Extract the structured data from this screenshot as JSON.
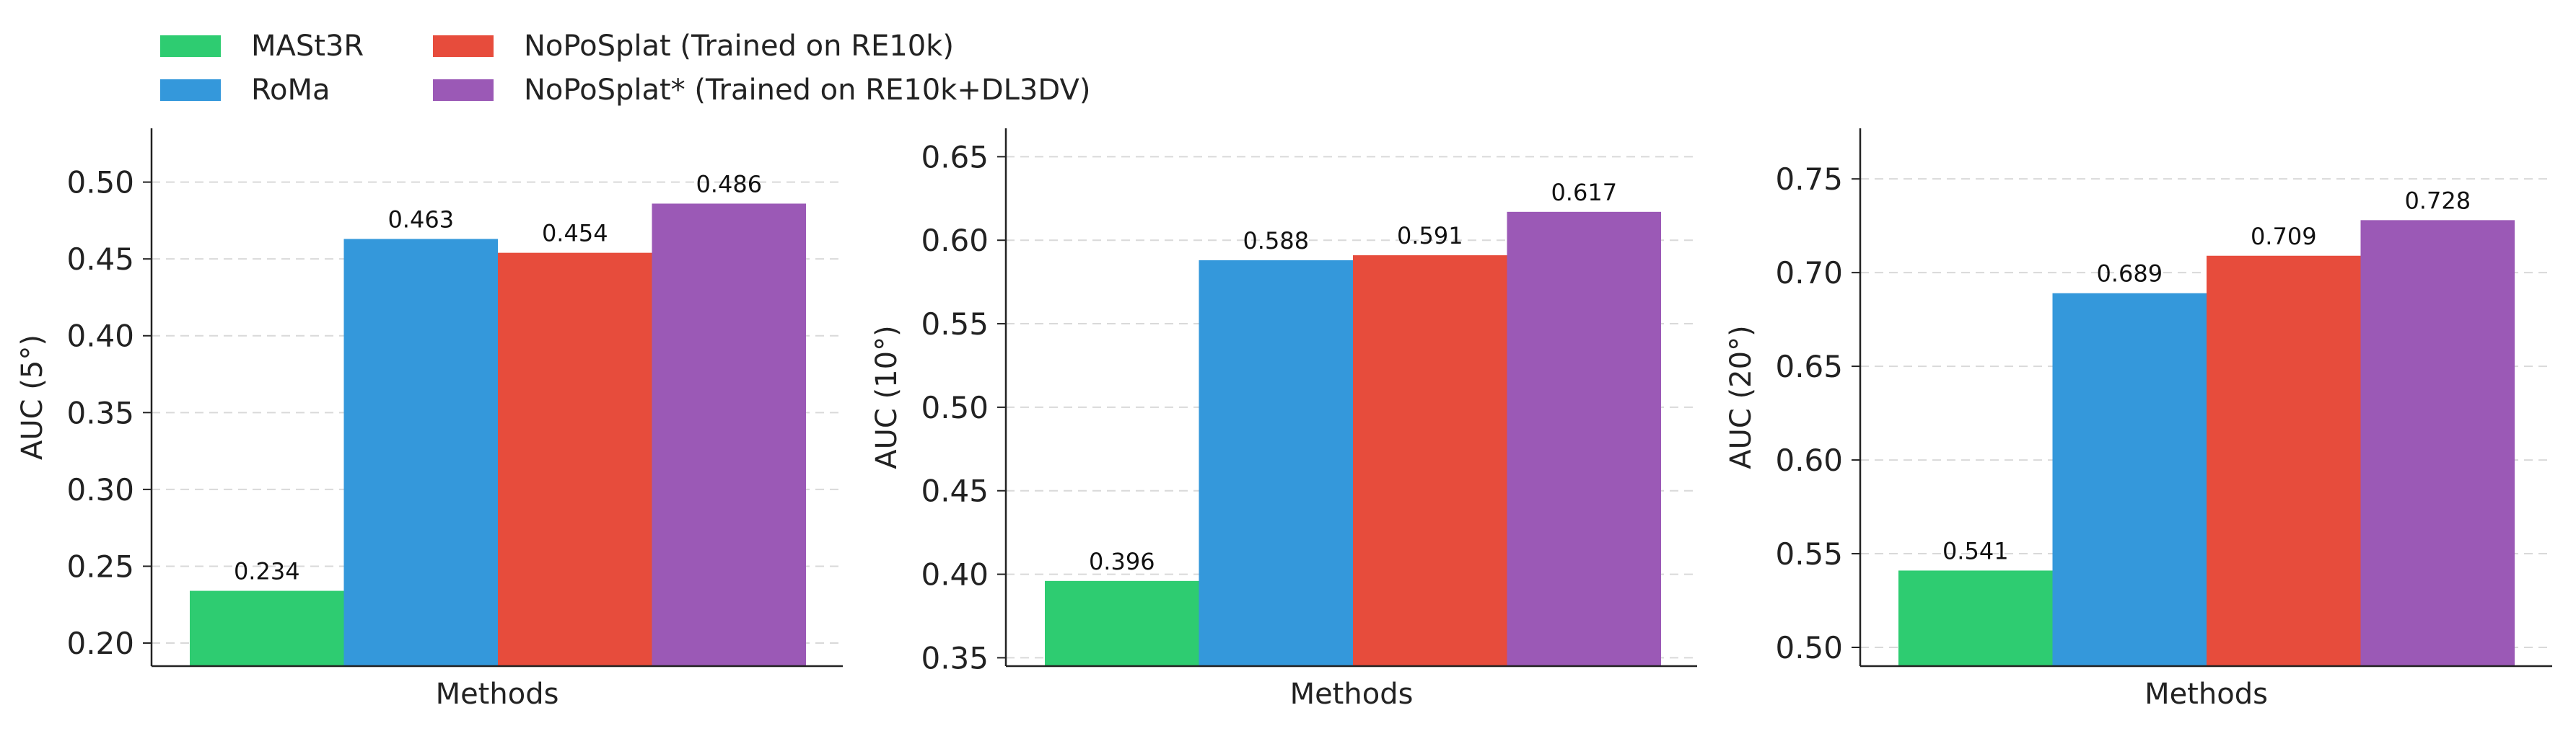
{
  "legend": {
    "items": [
      {
        "label": "MASt3R",
        "color": "#2ecc71"
      },
      {
        "label": "RoMa",
        "color": "#3498db"
      },
      {
        "label": "NoPoSplat (Trained on RE10k)",
        "color": "#e74c3c"
      },
      {
        "label": "NoPoSplat* (Trained on RE10k+DL3DV)",
        "color": "#9b59b6"
      }
    ]
  },
  "chart_data": [
    {
      "type": "bar",
      "xlabel": "Methods",
      "ylabel": "AUC (5°)",
      "ylim": [
        0.185,
        0.535
      ],
      "yticks": [
        "0.20",
        "0.25",
        "0.30",
        "0.35",
        "0.40",
        "0.45",
        "0.50"
      ],
      "grid": true,
      "series": [
        {
          "name": "MASt3R",
          "values": [
            0.234
          ],
          "label": "0.234"
        },
        {
          "name": "RoMa",
          "values": [
            0.463
          ],
          "label": "0.463"
        },
        {
          "name": "NoPoSplat (Trained on RE10k)",
          "values": [
            0.454
          ],
          "label": "0.454"
        },
        {
          "name": "NoPoSplat* (Trained on RE10k+DL3DV)",
          "values": [
            0.486
          ],
          "label": "0.486"
        }
      ]
    },
    {
      "type": "bar",
      "xlabel": "Methods",
      "ylabel": "AUC (10°)",
      "ylim": [
        0.345,
        0.667
      ],
      "yticks": [
        "0.35",
        "0.40",
        "0.45",
        "0.50",
        "0.55",
        "0.60",
        "0.65"
      ],
      "grid": true,
      "series": [
        {
          "name": "MASt3R",
          "values": [
            0.396
          ],
          "label": "0.396"
        },
        {
          "name": "RoMa",
          "values": [
            0.588
          ],
          "label": "0.588"
        },
        {
          "name": "NoPoSplat (Trained on RE10k)",
          "values": [
            0.591
          ],
          "label": "0.591"
        },
        {
          "name": "NoPoSplat* (Trained on RE10k+DL3DV)",
          "values": [
            0.617
          ],
          "label": "0.617"
        }
      ]
    },
    {
      "type": "bar",
      "xlabel": "Methods",
      "ylabel": "AUC (20°)",
      "ylim": [
        0.49,
        0.777
      ],
      "yticks": [
        "0.50",
        "0.55",
        "0.60",
        "0.65",
        "0.70",
        "0.75"
      ],
      "grid": true,
      "series": [
        {
          "name": "MASt3R",
          "values": [
            0.541
          ],
          "label": "0.541"
        },
        {
          "name": "RoMa",
          "values": [
            0.689
          ],
          "label": "0.689"
        },
        {
          "name": "NoPoSplat (Trained on RE10k)",
          "values": [
            0.709
          ],
          "label": "0.709"
        },
        {
          "name": "NoPoSplat* (Trained on RE10k+DL3DV)",
          "values": [
            0.728
          ],
          "label": "0.728"
        }
      ]
    }
  ]
}
